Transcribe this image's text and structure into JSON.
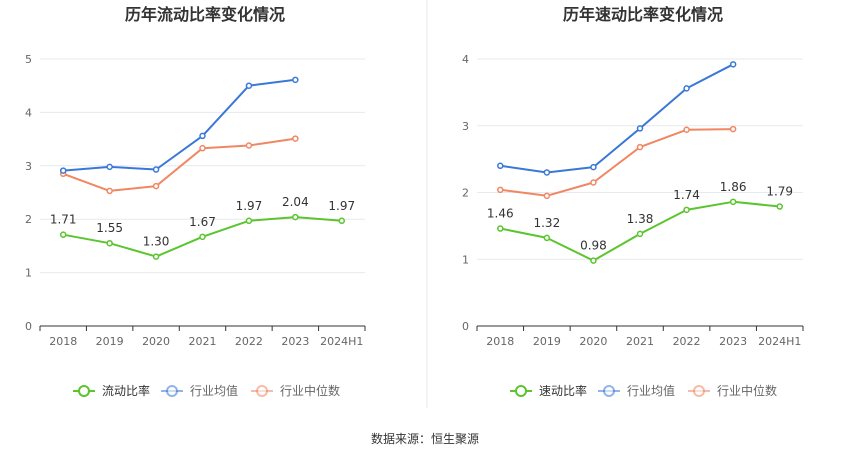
{
  "source_label": "数据来源：恒生聚源",
  "colors": {
    "company": "#5ac52e",
    "industry_avg": "#3a78d8",
    "industry_median": "#f08762",
    "grid": "#e6e9f0",
    "axis": "#333333",
    "divider": "#e8e8e8"
  },
  "chart_data": [
    {
      "type": "line",
      "title": "历年流动比率变化情况",
      "categories": [
        "2018",
        "2019",
        "2020",
        "2021",
        "2022",
        "2023",
        "2024H1"
      ],
      "ylim": [
        0,
        5
      ],
      "yticks": [
        0,
        1,
        2,
        3,
        4,
        5
      ],
      "grid": true,
      "legend_position": "bottom",
      "series": [
        {
          "name": "流动比率",
          "key": "company",
          "values": [
            1.71,
            1.55,
            1.3,
            1.67,
            1.97,
            2.04,
            1.97
          ],
          "labels": [
            "1.71",
            "1.55",
            "1.30",
            "1.67",
            "1.97",
            "2.04",
            "1.97"
          ]
        },
        {
          "name": "行业均值",
          "key": "industry_avg",
          "values": [
            2.91,
            2.98,
            2.93,
            3.56,
            4.5,
            4.61,
            null
          ]
        },
        {
          "name": "行业中位数",
          "key": "industry_median",
          "values": [
            2.85,
            2.53,
            2.62,
            3.33,
            3.38,
            3.51,
            null
          ]
        }
      ]
    },
    {
      "type": "line",
      "title": "历年速动比率变化情况",
      "categories": [
        "2018",
        "2019",
        "2020",
        "2021",
        "2022",
        "2023",
        "2024H1"
      ],
      "ylim": [
        0,
        4
      ],
      "yticks": [
        0,
        1,
        2,
        3,
        4
      ],
      "grid": true,
      "legend_position": "bottom",
      "series": [
        {
          "name": "速动比率",
          "key": "company",
          "values": [
            1.46,
            1.32,
            0.98,
            1.38,
            1.74,
            1.86,
            1.79
          ],
          "labels": [
            "1.46",
            "1.32",
            "0.98",
            "1.38",
            "1.74",
            "1.86",
            "1.79"
          ]
        },
        {
          "name": "行业均值",
          "key": "industry_avg",
          "values": [
            2.4,
            2.3,
            2.38,
            2.96,
            3.56,
            3.92,
            null
          ]
        },
        {
          "name": "行业中位数",
          "key": "industry_median",
          "values": [
            2.04,
            1.95,
            2.15,
            2.68,
            2.94,
            2.95,
            null
          ]
        }
      ]
    }
  ]
}
